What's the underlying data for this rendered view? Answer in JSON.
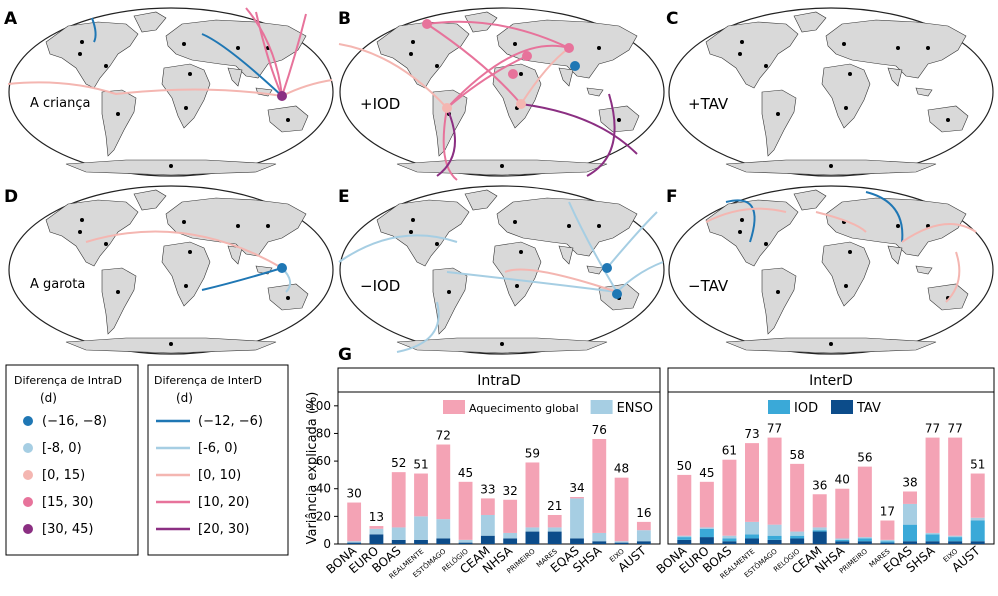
{
  "panels": [
    {
      "letter": "A",
      "label": "A criança"
    },
    {
      "letter": "B",
      "label": "+IOD"
    },
    {
      "letter": "C",
      "label": "+TAV"
    },
    {
      "letter": "D",
      "label": "A garota"
    },
    {
      "letter": "E",
      "label": "−IOD"
    },
    {
      "letter": "F",
      "label": "−TAV"
    }
  ],
  "legend_intra": {
    "title": "Diferença de IntraD",
    "unit": "(d)",
    "items": [
      {
        "label": "(−16, −8)",
        "color": "#1f77b4"
      },
      {
        "label": "[-8, 0)",
        "color": "#a6cee3"
      },
      {
        "label": "[0, 15)",
        "color": "#f4b6b1"
      },
      {
        "label": "[15, 30)",
        "color": "#e7739b"
      },
      {
        "label": "[30, 45)",
        "color": "#8b2f82"
      }
    ]
  },
  "legend_inter": {
    "title": "Diferença de InterD",
    "unit": "(d)",
    "items": [
      {
        "label": "(−12, −6)",
        "color": "#1f77b4"
      },
      {
        "label": "[-6, 0)",
        "color": "#a6cee3"
      },
      {
        "label": "[0, 10)",
        "color": "#f4b6b1"
      },
      {
        "label": "[10, 20)",
        "color": "#e7739b"
      },
      {
        "label": "[20, 30)",
        "color": "#8b2f82"
      }
    ]
  },
  "chart_data": {
    "type": "bar",
    "panel_letter": "G",
    "ylabel": "Variância explicada (%)",
    "ylim": [
      0,
      110
    ],
    "yticks": [
      0,
      20,
      40,
      60,
      80,
      100
    ],
    "stacked": true,
    "colors": {
      "Aquecimento global": "#f4a3b5",
      "ENSO": "#a6cee3",
      "IOD": "#3aa9d8",
      "TAV": "#0c4c8a"
    },
    "legend_left": [
      "Aquecimento global",
      "ENSO"
    ],
    "legend_right": [
      "IOD",
      "TAV"
    ],
    "categories": [
      {
        "label": "BONA",
        "small": false
      },
      {
        "label": "EURO",
        "small": false
      },
      {
        "label": "BOAS",
        "small": false
      },
      {
        "label": "REALMENTE",
        "small": true
      },
      {
        "label": "ESTÔMAGO",
        "small": true
      },
      {
        "label": "RELÓGIO",
        "small": true
      },
      {
        "label": "CEAM",
        "small": false
      },
      {
        "label": "NHSA",
        "small": false
      },
      {
        "label": "PRIMEIRO",
        "small": true
      },
      {
        "label": "MARES",
        "small": true
      },
      {
        "label": "EQAS",
        "small": false
      },
      {
        "label": "SHSA",
        "small": false
      },
      {
        "label": "EIXO",
        "small": true
      },
      {
        "label": "AUST",
        "small": false
      }
    ],
    "panels": [
      {
        "title": "IntraD",
        "totals": [
          30,
          13,
          52,
          51,
          72,
          45,
          33,
          32,
          59,
          21,
          34,
          76,
          48,
          16
        ],
        "series": [
          {
            "name": "TAV",
            "values": [
              1,
              7,
              3,
              3,
              4,
              1,
              6,
              4,
              9,
              9,
              4,
              2,
              1,
              2
            ]
          },
          {
            "name": "IOD",
            "values": [
              0,
              0,
              0,
              0,
              0,
              0,
              0,
              0,
              0,
              0,
              0,
              0,
              0,
              0
            ]
          },
          {
            "name": "ENSO",
            "values": [
              1,
              4,
              9,
              17,
              14,
              2,
              15,
              4,
              3,
              3,
              29,
              6,
              1,
              8
            ]
          },
          {
            "name": "Aquecimento global",
            "values": [
              28,
              2,
              40,
              31,
              54,
              42,
              12,
              24,
              47,
              9,
              1,
              68,
              46,
              6
            ]
          }
        ]
      },
      {
        "title": "InterD",
        "totals": [
          50,
          45,
          61,
          73,
          77,
          58,
          36,
          40,
          56,
          17,
          38,
          77,
          77,
          51
        ],
        "series": [
          {
            "name": "TAV",
            "values": [
              3,
              5,
              2,
              4,
              3,
              4,
              9,
              2,
              2,
              1,
              2,
              2,
              2,
              2
            ]
          },
          {
            "name": "IOD",
            "values": [
              2,
              6,
              2,
              3,
              3,
              2,
              1,
              1,
              2,
              1,
              12,
              5,
              3,
              15
            ]
          },
          {
            "name": "ENSO",
            "values": [
              1,
              1,
              2,
              9,
              8,
              3,
              2,
              1,
              1,
              1,
              15,
              1,
              1,
              2
            ]
          },
          {
            "name": "Aquecimento global",
            "values": [
              44,
              33,
              55,
              57,
              63,
              49,
              24,
              36,
              51,
              14,
              9,
              69,
              71,
              32
            ]
          }
        ]
      }
    ]
  }
}
